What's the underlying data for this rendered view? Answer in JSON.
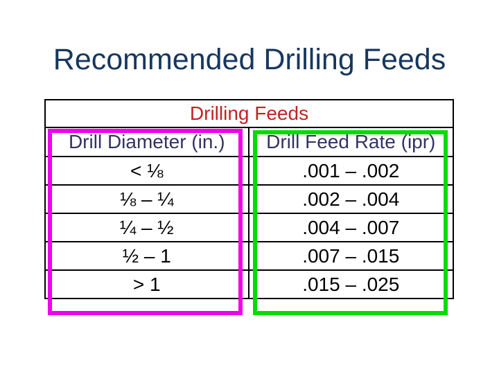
{
  "slide": {
    "title": "Recommended Drilling Feeds"
  },
  "table": {
    "title": "Drilling Feeds",
    "columns": {
      "diameter": "Drill Diameter (in.)",
      "feed_rate": "Drill Feed Rate (ipr)"
    },
    "rows": [
      {
        "diameter": "< ⅛",
        "feed_rate": ".001 – .002"
      },
      {
        "diameter": "⅛ – ¼",
        "feed_rate": ".002 – .004"
      },
      {
        "diameter": "¼ – ½",
        "feed_rate": ".004 – .007"
      },
      {
        "diameter": "½ – 1",
        "feed_rate": ".007 – .015"
      },
      {
        "diameter": "> 1",
        "feed_rate": ".015 – .025"
      }
    ]
  },
  "colors": {
    "slide_background": "#FFFFFF",
    "title_text": "#17375E",
    "table_title_text": "#C32222",
    "column_header_text": "#333366",
    "body_text": "#000000",
    "table_border": "#000000",
    "diameter_highlight_box": "#EE00EE",
    "feed_rate_highlight_box": "#00DC00"
  }
}
